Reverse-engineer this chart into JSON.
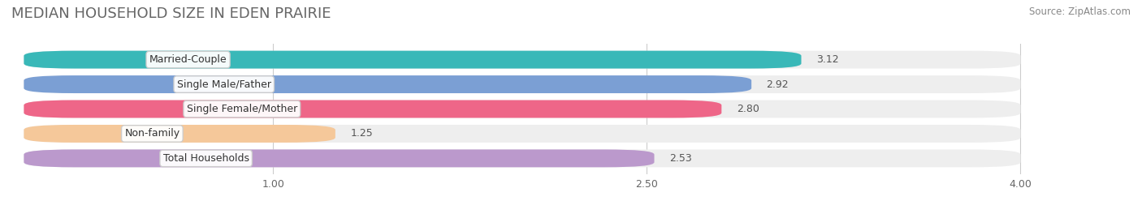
{
  "title": "MEDIAN HOUSEHOLD SIZE IN EDEN PRAIRIE",
  "source": "Source: ZipAtlas.com",
  "categories": [
    "Married-Couple",
    "Single Male/Father",
    "Single Female/Mother",
    "Non-family",
    "Total Households"
  ],
  "values": [
    3.12,
    2.92,
    2.8,
    1.25,
    2.53
  ],
  "bar_colors": [
    "#39b8b8",
    "#7b9fd4",
    "#ee6688",
    "#f5c89a",
    "#bb99cc"
  ],
  "background_color": "#ffffff",
  "bar_bg_color": "#eeeeee",
  "xlim_data": [
    0,
    4.0
  ],
  "xlim_plot": [
    -0.02,
    4.3
  ],
  "xticks": [
    1.0,
    2.5,
    4.0
  ],
  "title_fontsize": 13,
  "label_fontsize": 9,
  "value_fontsize": 9,
  "source_fontsize": 8.5
}
